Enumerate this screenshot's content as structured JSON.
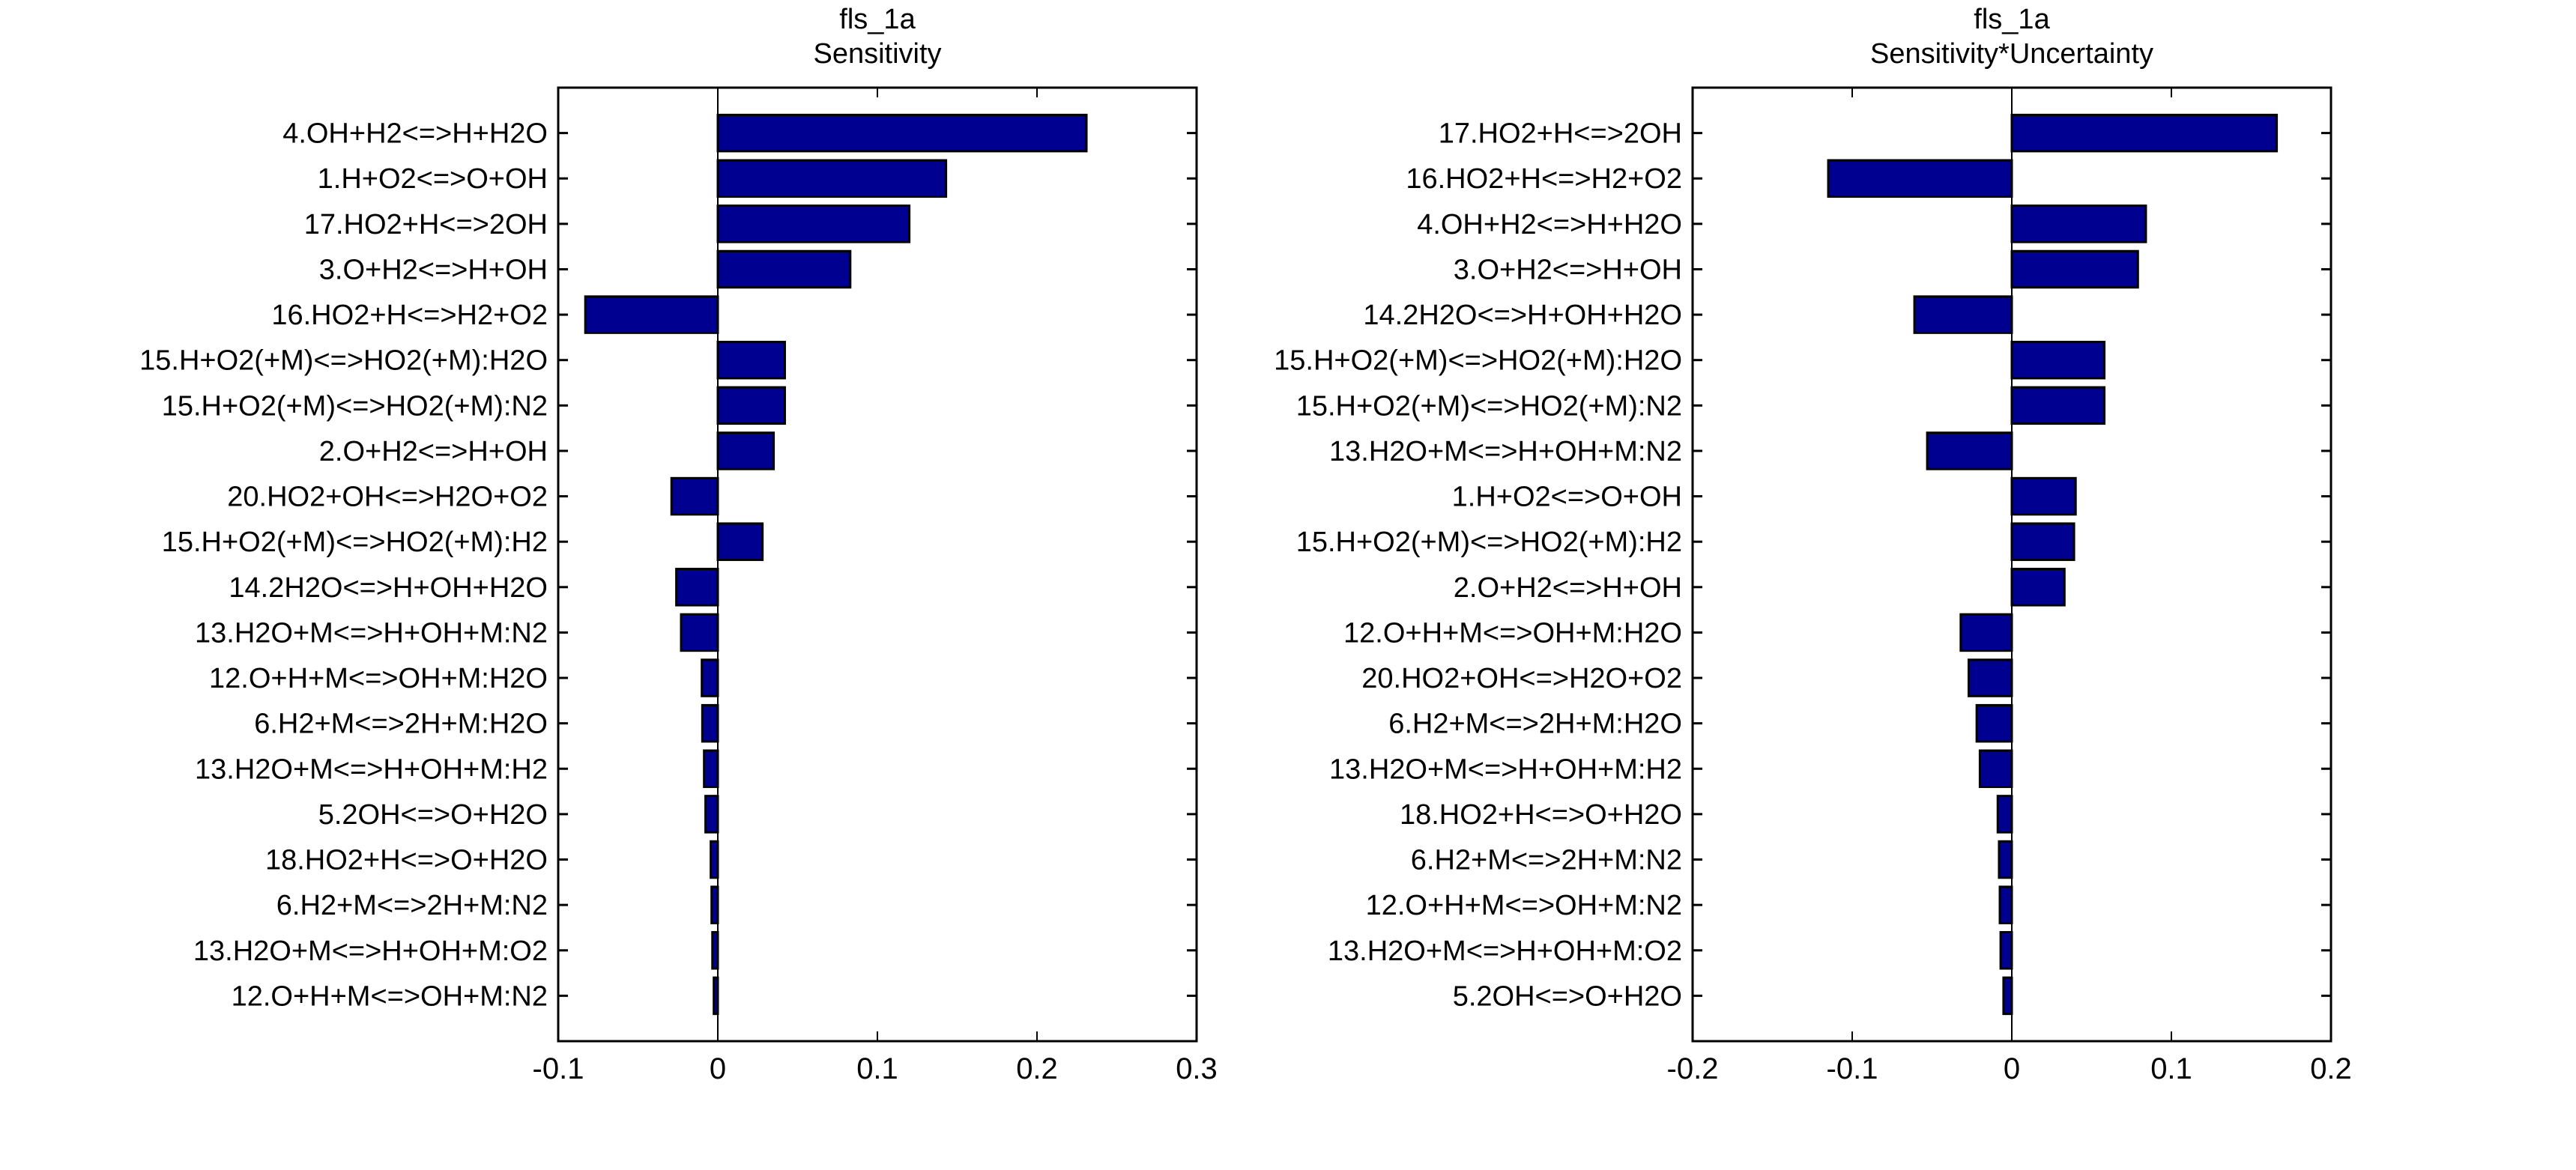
{
  "colors": {
    "bar_fill": "#000090",
    "bar_edge": "#000000",
    "axis": "#000000",
    "background": "#ffffff"
  },
  "chart_data": [
    {
      "type": "bar",
      "orientation": "horizontal",
      "title": "fls_1a",
      "subtitle": "Sensitivity",
      "xlabel": "",
      "ylabel": "",
      "xlim": [
        -0.1,
        0.3
      ],
      "xticks": [
        -0.1,
        0,
        0.1,
        0.2,
        0.3
      ],
      "xtick_labels": [
        "-0.1",
        "0",
        "0.1",
        "0.2",
        "0.3"
      ],
      "grid": false,
      "legend": "none",
      "categories": [
        "4.OH+H2<=>H+H2O",
        "1.H+O2<=>O+OH",
        "17.HO2+H<=>2OH",
        "3.O+H2<=>H+OH",
        "16.HO2+H<=>H2+O2",
        "15.H+O2(+M)<=>HO2(+M):H2O",
        "15.H+O2(+M)<=>HO2(+M):N2",
        "2.O+H2<=>H+OH",
        "20.HO2+OH<=>H2O+O2",
        "15.H+O2(+M)<=>HO2(+M):H2",
        "14.2H2O<=>H+OH+H2O",
        "13.H2O+M<=>H+OH+M:N2",
        "12.O+H+M<=>OH+M:H2O",
        "6.H2+M<=>2H+M:H2O",
        "13.H2O+M<=>H+OH+M:H2",
        "5.2OH<=>O+H2O",
        "18.HO2+H<=>O+H2O",
        "6.H2+M<=>2H+M:N2",
        "13.H2O+M<=>H+OH+M:O2",
        "12.O+H+M<=>OH+M:N2"
      ],
      "values": [
        0.231,
        0.143,
        0.12,
        0.083,
        -0.083,
        0.042,
        0.042,
        0.035,
        -0.029,
        0.028,
        -0.026,
        -0.023,
        -0.01,
        -0.0097,
        -0.0086,
        -0.0077,
        -0.0044,
        -0.0039,
        -0.0034,
        -0.0025
      ]
    },
    {
      "type": "bar",
      "orientation": "horizontal",
      "title": "fls_1a",
      "subtitle": "Sensitivity*Uncertainty",
      "xlabel": "",
      "ylabel": "",
      "xlim": [
        -0.2,
        0.2
      ],
      "xticks": [
        -0.2,
        -0.1,
        0,
        0.1,
        0.2
      ],
      "xtick_labels": [
        "-0.2",
        "-0.1",
        "0",
        "0.1",
        "0.2"
      ],
      "grid": false,
      "legend": "none",
      "categories": [
        "17.HO2+H<=>2OH",
        "16.HO2+H<=>H2+O2",
        "4.OH+H2<=>H+H2O",
        "3.O+H2<=>H+OH",
        "14.2H2O<=>H+OH+H2O",
        "15.H+O2(+M)<=>HO2(+M):H2O",
        "15.H+O2(+M)<=>HO2(+M):N2",
        "13.H2O+M<=>H+OH+M:N2",
        "1.H+O2<=>O+OH",
        "15.H+O2(+M)<=>HO2(+M):H2",
        "2.O+H2<=>H+OH",
        "12.O+H+M<=>OH+M:H2O",
        "20.HO2+OH<=>H2O+O2",
        "6.H2+M<=>2H+M:H2O",
        "13.H2O+M<=>H+OH+M:H2",
        "18.HO2+H<=>O+H2O",
        "6.H2+M<=>2H+M:N2",
        "12.O+H+M<=>OH+M:N2",
        "13.H2O+M<=>H+OH+M:O2",
        "5.2OH<=>O+H2O"
      ],
      "values": [
        0.166,
        -0.115,
        0.084,
        0.079,
        -0.061,
        0.058,
        0.058,
        -0.053,
        0.04,
        0.039,
        0.033,
        -0.032,
        -0.027,
        -0.022,
        -0.02,
        -0.0088,
        -0.008,
        -0.0075,
        -0.007,
        -0.0052
      ]
    }
  ]
}
